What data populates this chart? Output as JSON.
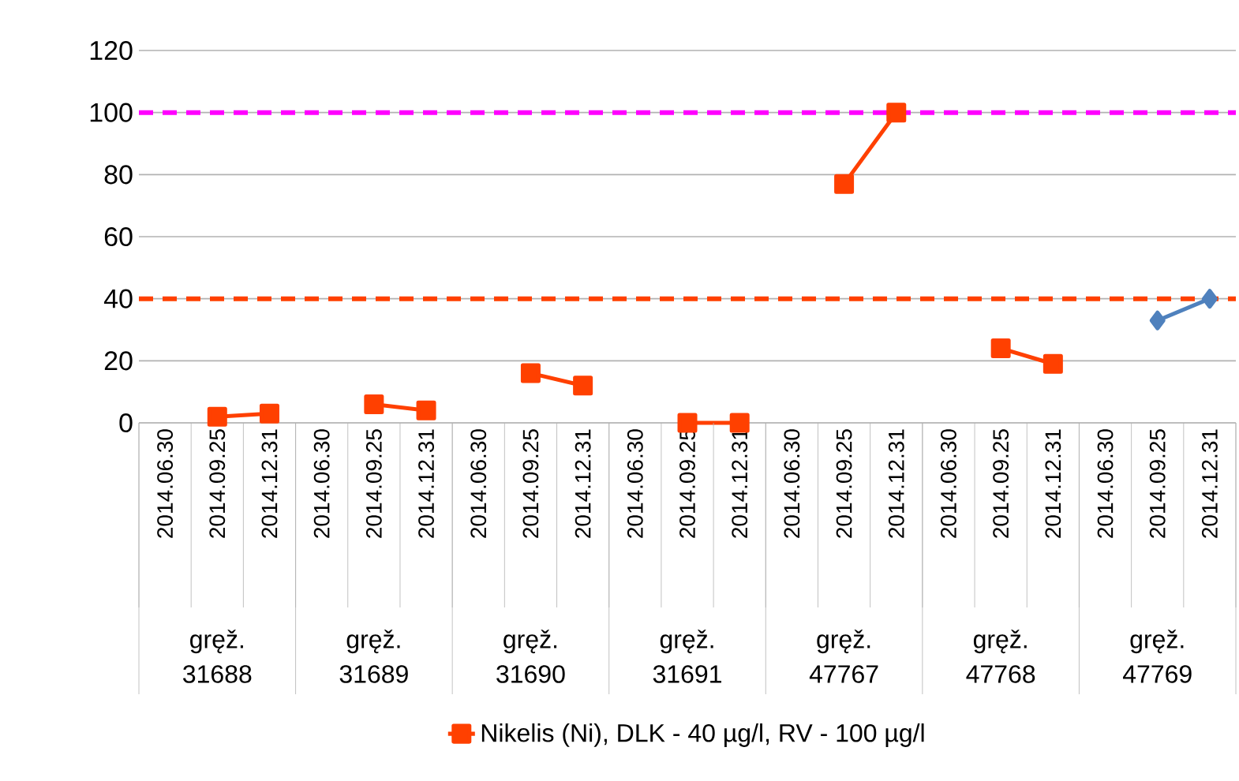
{
  "chart_data": {
    "type": "line",
    "categories": [
      "2014.06.30",
      "2014.09.25",
      "2014.12.31",
      "2014.06.30",
      "2014.09.25",
      "2014.12.31",
      "2014.06.30",
      "2014.09.25",
      "2014.12.31",
      "2014.06.30",
      "2014.09.25",
      "2014.12.31",
      "2014.06.30",
      "2014.09.25",
      "2014.12.31",
      "2014.06.30",
      "2014.09.25",
      "2014.12.31",
      "2014.06.30",
      "2014.09.25",
      "2014.12.31"
    ],
    "series": [
      {
        "name": "Nikelis (Ni), DLK - 40 µg/l, RV - 100 µg/l",
        "color": "#ff4000",
        "marker": "square",
        "values": [
          null,
          2,
          3,
          null,
          6,
          4,
          null,
          16,
          12,
          null,
          0,
          0,
          null,
          77,
          100,
          null,
          24,
          19,
          null,
          null,
          null
        ]
      },
      {
        "color": "#4f81bd",
        "marker": "diamond",
        "values": [
          null,
          null,
          null,
          null,
          null,
          null,
          null,
          null,
          null,
          null,
          null,
          null,
          null,
          null,
          null,
          null,
          null,
          null,
          null,
          33,
          40
        ]
      }
    ],
    "annotations": [
      "gręž. 31688",
      "gręž. 31689",
      "gręž. 31690",
      "gręž. 31691",
      "gręž. 47767",
      "gręž. 47768",
      "gręž. 47769"
    ],
    "ref_lines": [
      {
        "axis": "y",
        "value": 100,
        "color": "#ff00ff",
        "line_style": "dashed"
      },
      {
        "axis": "y",
        "value": 40,
        "color": "#ff4000",
        "line_style": "dashed"
      }
    ],
    "ylim": [
      0,
      120
    ],
    "yticks": [
      0,
      20,
      40,
      60,
      80,
      100,
      120
    ],
    "grid": "y",
    "legend": "bottom",
    "line_style": "solid"
  }
}
